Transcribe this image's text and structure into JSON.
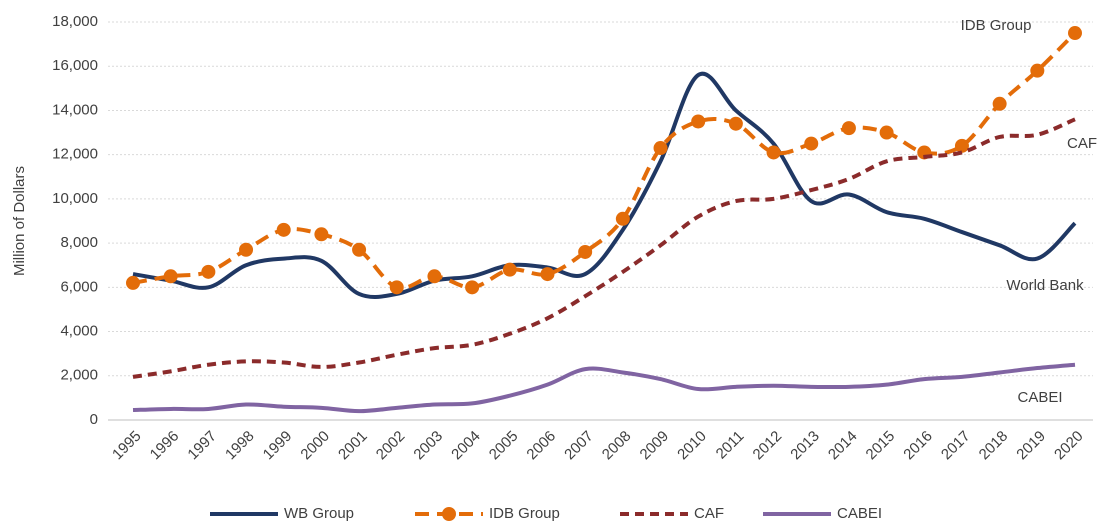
{
  "chart_data": {
    "type": "line",
    "y_label": "Million of  Dollars",
    "categories": [
      "1995",
      "1996",
      "1997",
      "1998",
      "1999",
      "2000",
      "2001",
      "2002",
      "2003",
      "2004",
      "2005",
      "2006",
      "2007",
      "2008",
      "2009",
      "2010",
      "2011",
      "2012",
      "2013",
      "2014",
      "2015",
      "2016",
      "2017",
      "2018",
      "2019",
      "2020"
    ],
    "series": [
      {
        "name": "WB Group",
        "color": "#203864",
        "dash": "solid",
        "markers": false,
        "values": [
          6600,
          6300,
          6000,
          7000,
          7300,
          7200,
          5700,
          5700,
          6300,
          6500,
          7000,
          6900,
          6600,
          8600,
          11700,
          15600,
          14000,
          12500,
          9900,
          10200,
          9400,
          9100,
          8500,
          7900,
          7300,
          8900
        ]
      },
      {
        "name": "IDB Group",
        "color": "#e36c09",
        "dash": "long",
        "markers": true,
        "values": [
          6200,
          6500,
          6700,
          7700,
          8600,
          8400,
          7700,
          6000,
          6500,
          6000,
          6800,
          6600,
          7600,
          9100,
          12300,
          13500,
          13400,
          12100,
          12500,
          13200,
          13000,
          12100,
          12400,
          14300,
          15800,
          17500
        ]
      },
      {
        "name": "CAF",
        "color": "#8b2b2b",
        "dash": "short",
        "markers": false,
        "values": [
          1950,
          2200,
          2500,
          2650,
          2600,
          2400,
          2600,
          2950,
          3250,
          3400,
          3900,
          4600,
          5600,
          6700,
          7900,
          9200,
          9900,
          10000,
          10400,
          10900,
          11700,
          11900,
          12100,
          12800,
          12900,
          13600
        ]
      },
      {
        "name": "CABEI",
        "color": "#8064a2",
        "dash": "solid",
        "markers": false,
        "values": [
          450,
          500,
          500,
          700,
          600,
          550,
          400,
          550,
          700,
          750,
          1100,
          1600,
          2300,
          2150,
          1850,
          1400,
          1500,
          1550,
          1500,
          1500,
          1600,
          1850,
          1950,
          2150,
          2350,
          2500
        ]
      }
    ],
    "annotations": [
      "IDB Group",
      "CAF",
      "World Bank",
      "CABEI"
    ],
    "ylim": [
      0,
      18000
    ],
    "yticks": [
      0,
      {
        "value": 2000,
        "label": "2,000"
      },
      {
        "value": 4000,
        "label": "4,000"
      },
      {
        "value": 6000,
        "label": "6,000"
      },
      {
        "value": 8000,
        "label": "8,000"
      },
      {
        "value": 10000,
        "label": "10,000"
      },
      {
        "value": 12000,
        "label": "12,000"
      },
      {
        "value": 14000,
        "label": "14,000"
      },
      {
        "value": 16000,
        "label": "16,000"
      },
      {
        "value": 18000,
        "label": "18,000"
      }
    ],
    "grid": true,
    "legend": "bottom"
  }
}
